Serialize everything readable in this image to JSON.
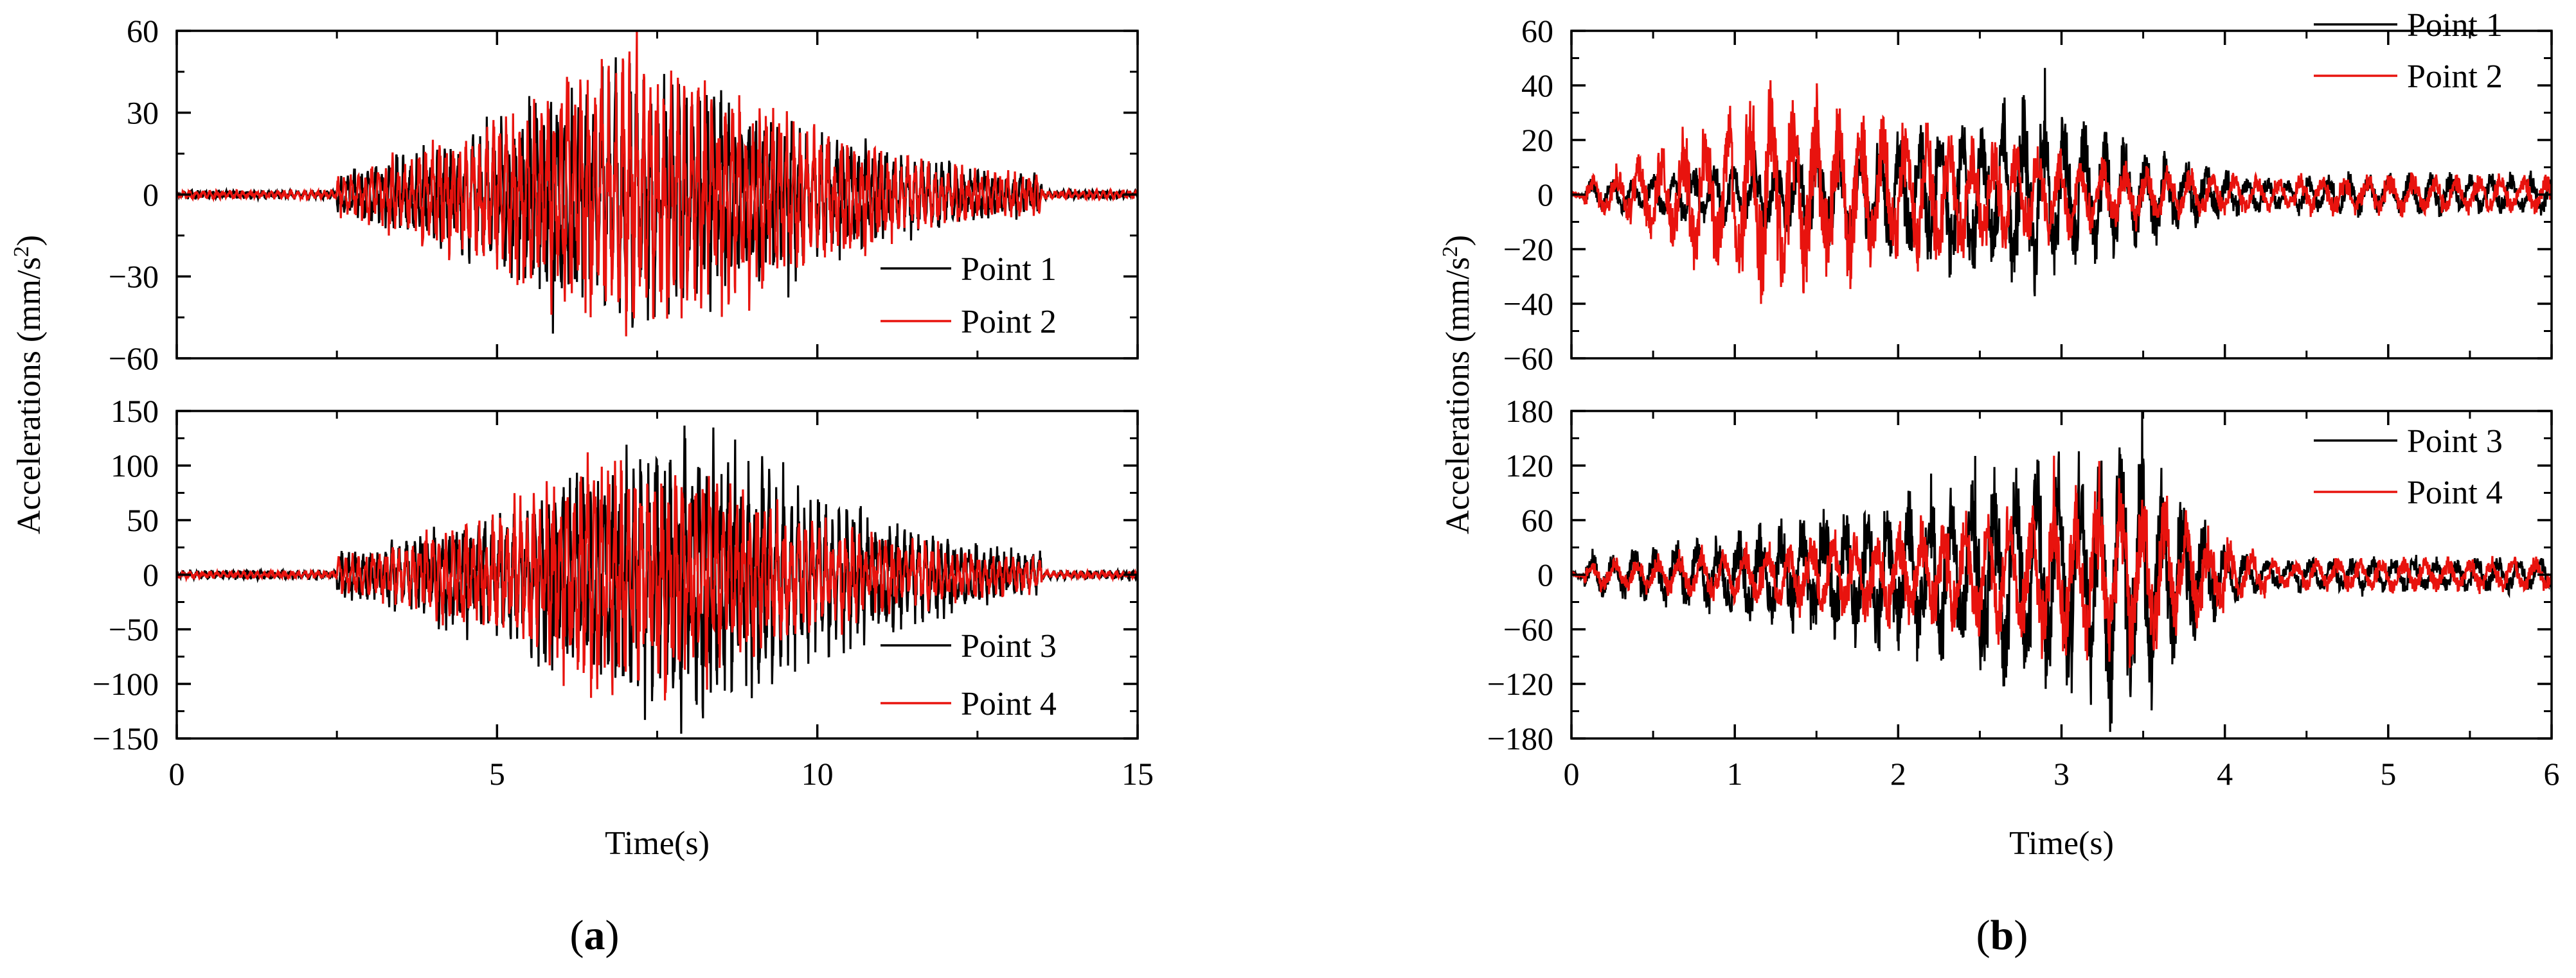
{
  "chart_data": [
    {
      "panel": "a",
      "caption_letter": "a",
      "type": "line",
      "xlabel": "Time(s)",
      "ylabel": "Accelerations (mm/s",
      "ylabel_sup": "2",
      "ylabel_close": ")",
      "xlim": [
        0,
        15
      ],
      "xticks": [
        0,
        5,
        10,
        15
      ],
      "subplots": [
        {
          "ylim": [
            -60,
            60
          ],
          "yticks": [
            -60,
            -30,
            0,
            30,
            60
          ],
          "legend_position": "bottom-right",
          "series": [
            {
              "name": "Point 1",
              "color": "#000000",
              "seed": 11,
              "envelope": {
                "start": 2.5,
                "peak": 7.0,
                "end": 13.5,
                "amp": 40
              },
              "freq_hz": 9.0
            },
            {
              "name": "Point 2",
              "color": "#e8130e",
              "seed": 23,
              "envelope": {
                "start": 2.5,
                "peak": 7.0,
                "end": 13.5,
                "amp": 43
              },
              "freq_hz": 9.5
            }
          ]
        },
        {
          "ylim": [
            -150,
            150
          ],
          "yticks": [
            -150,
            -100,
            -50,
            0,
            50,
            100,
            150
          ],
          "legend_position": "bottom-right",
          "series": [
            {
              "name": "Point 3",
              "color": "#000000",
              "seed": 37,
              "envelope": {
                "start": 2.5,
                "peak": 8.0,
                "end": 13.5,
                "amp": 110
              },
              "freq_hz": 9.0
            },
            {
              "name": "Point 4",
              "color": "#e8130e",
              "seed": 41,
              "envelope": {
                "start": 2.5,
                "peak": 7.0,
                "end": 13.5,
                "amp": 90
              },
              "freq_hz": 9.5
            }
          ]
        }
      ]
    },
    {
      "panel": "b",
      "caption_letter": "b",
      "type": "line",
      "xlabel": "Time(s)",
      "ylabel": "Accelerations (mm/s",
      "ylabel_sup": "2",
      "ylabel_close": ")",
      "xlim": [
        0,
        6
      ],
      "xticks": [
        0,
        1,
        2,
        3,
        4,
        5,
        6
      ],
      "subplots": [
        {
          "ylim": [
            -60,
            60
          ],
          "yticks": [
            -60,
            -40,
            -20,
            0,
            20,
            40,
            60
          ],
          "legend_position": "top-right",
          "series": [
            {
              "name": "Point 1",
              "color": "#000000",
              "seed": 53,
              "envelope": {
                "start": 0.08,
                "peak": 2.8,
                "end": 4.45,
                "amp": 28,
                "tail_amp": 6
              },
              "freq_hz": 8.0
            },
            {
              "name": "Point 2",
              "color": "#e8130e",
              "seed": 67,
              "envelope": {
                "start": 0.08,
                "peak": 1.2,
                "end": 4.45,
                "amp": 33,
                "tail_amp": 6
              },
              "freq_hz": 7.4
            }
          ]
        },
        {
          "ylim": [
            -180,
            180
          ],
          "yticks": [
            -180,
            -120,
            -60,
            0,
            60,
            120,
            180
          ],
          "legend_position": "top-right",
          "series": [
            {
              "name": "Point 3",
              "color": "#000000",
              "seed": 79,
              "envelope": {
                "start": 0.08,
                "peak": 3.5,
                "end": 4.2,
                "amp": 125,
                "tail_amp": 15
              },
              "freq_hz": 7.8
            },
            {
              "name": "Point 4",
              "color": "#e8130e",
              "seed": 83,
              "envelope": {
                "start": 0.08,
                "peak": 3.5,
                "end": 4.45,
                "amp": 82,
                "tail_amp": 15
              },
              "freq_hz": 7.4
            }
          ]
        }
      ]
    }
  ]
}
